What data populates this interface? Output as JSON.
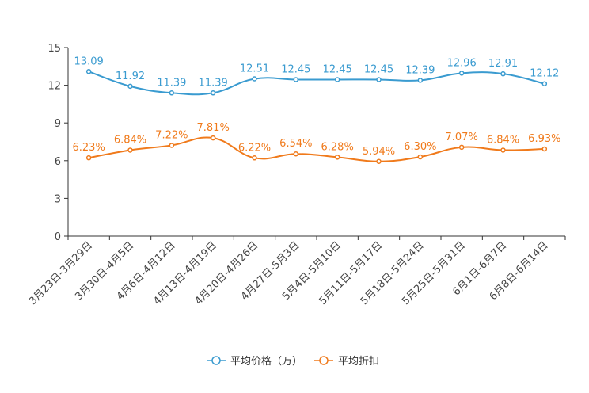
{
  "chart_data": {
    "type": "line",
    "title": "",
    "xlabel": "",
    "ylabel": "",
    "ylim": [
      0,
      15
    ],
    "yticks": [
      0,
      3,
      6,
      9,
      12,
      15
    ],
    "grid": false,
    "legend_position": "bottom-center",
    "categories": [
      "3月23日-3月29日",
      "3月30日-4月5日",
      "4月6日-4月12日",
      "4月13日-4月19日",
      "4月20日-4月26日",
      "4月27日-5月3日",
      "5月4日-5月10日",
      "5月11日-5月17日",
      "5月18日-5月24日",
      "5月25日-5月31日",
      "6月1日-6月7日",
      "6月8日-6月14日"
    ],
    "series": [
      {
        "name": "平均价格（万）",
        "color": "#3a9bd0",
        "values": [
          13.09,
          11.92,
          11.39,
          11.39,
          12.51,
          12.45,
          12.45,
          12.45,
          12.39,
          12.96,
          12.91,
          12.12
        ],
        "labels": [
          "13.09",
          "11.92",
          "11.39",
          "11.39",
          "12.51",
          "12.45",
          "12.45",
          "12.45",
          "12.39",
          "12.96",
          "12.91",
          "12.12"
        ]
      },
      {
        "name": "平均折扣",
        "color": "#f07a1b",
        "values": [
          6.23,
          6.84,
          7.22,
          7.81,
          6.22,
          6.54,
          6.28,
          5.94,
          6.3,
          7.07,
          6.84,
          6.93
        ],
        "labels": [
          "6.23%",
          "6.84%",
          "7.22%",
          "7.81%",
          "6.22%",
          "6.54%",
          "6.28%",
          "5.94%",
          "6.30%",
          "7.07%",
          "6.84%",
          "6.93%"
        ]
      }
    ]
  }
}
